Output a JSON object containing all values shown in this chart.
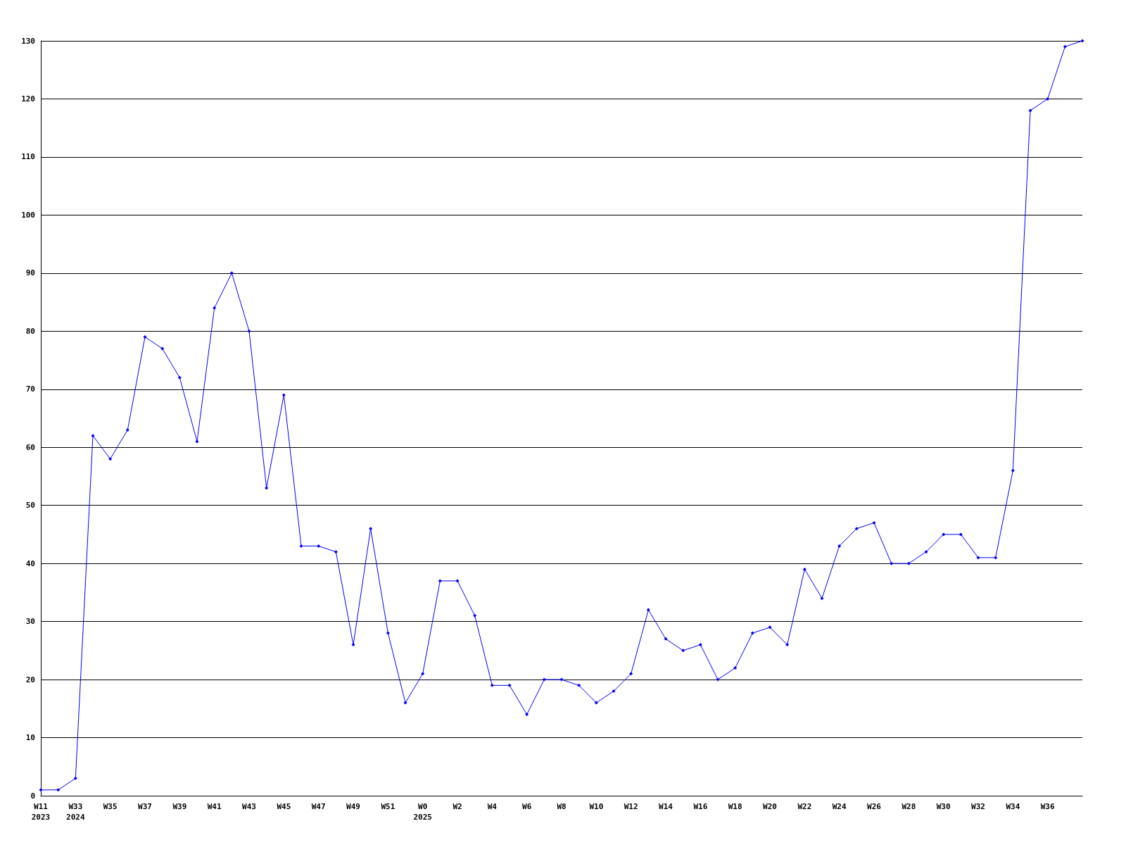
{
  "chart_data": {
    "type": "line",
    "categories": [
      "W11\n2023",
      null,
      "W33\n2024",
      null,
      "W35",
      null,
      "W37",
      null,
      "W39",
      null,
      "W41",
      null,
      "W43",
      null,
      "W45",
      null,
      "W47",
      null,
      "W49",
      null,
      "W51",
      null,
      "W0\n2025",
      null,
      "W2",
      null,
      "W4",
      null,
      "W6",
      null,
      "W8",
      null,
      "W10",
      null,
      "W12",
      null,
      "W14",
      null,
      "W16",
      null,
      "W18",
      null,
      "W20",
      null,
      "W22",
      null,
      "W24",
      null,
      "W26",
      null,
      "W28",
      null,
      "W30",
      null,
      "W32",
      null,
      "W34",
      null,
      "W36",
      null,
      null
    ],
    "series": [
      {
        "color": "#0000ff",
        "values": [
          1,
          1,
          3,
          62,
          58,
          63,
          79,
          77,
          72,
          61,
          84,
          90,
          80,
          53,
          69,
          43,
          43,
          42,
          26,
          46,
          28,
          16,
          21,
          37,
          37,
          31,
          19,
          19,
          14,
          20,
          20,
          19,
          16,
          18,
          21,
          32,
          27,
          25,
          26,
          20,
          22,
          28,
          29,
          26,
          39,
          34,
          43,
          46,
          47,
          40,
          40,
          42,
          45,
          45,
          41,
          41,
          56,
          118,
          120,
          129,
          130
        ]
      }
    ],
    "ylim": [
      0,
      130
    ],
    "yticks": [
      0,
      10,
      20,
      30,
      40,
      50,
      60,
      70,
      80,
      90,
      100,
      110,
      120,
      130
    ],
    "grid": "y",
    "marker": "diamond",
    "line_style": "solid"
  }
}
